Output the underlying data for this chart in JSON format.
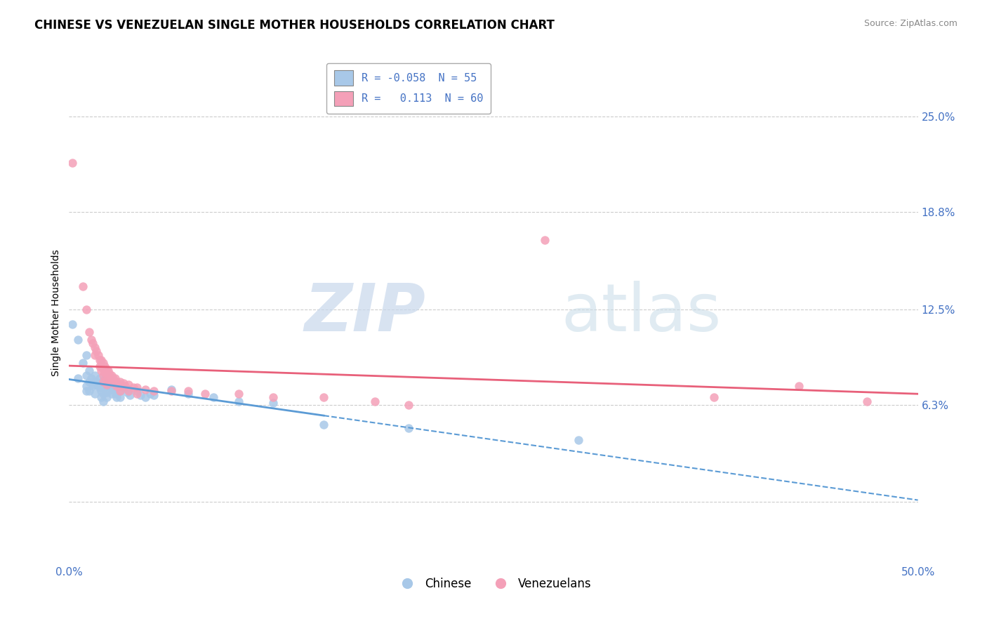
{
  "title": "CHINESE VS VENEZUELAN SINGLE MOTHER HOUSEHOLDS CORRELATION CHART",
  "source": "Source: ZipAtlas.com",
  "ylabel": "Single Mother Households",
  "background_color": "#ffffff",
  "grid_color": "#cccccc",
  "chinese_color": "#a8c8e8",
  "venezuelan_color": "#f4a0b8",
  "chinese_line_color": "#5b9bd5",
  "venezuelan_line_color": "#e8607a",
  "legend_R_chinese": "-0.058",
  "legend_N_chinese": "55",
  "legend_R_venezuelan": "0.113",
  "legend_N_venezuelan": "60",
  "xlim": [
    0.0,
    0.5
  ],
  "ylim": [
    -0.04,
    0.285
  ],
  "ytick_vals": [
    0.0,
    0.063,
    0.125,
    0.188,
    0.25
  ],
  "ytick_labels": [
    "",
    "6.3%",
    "12.5%",
    "18.8%",
    "25.0%"
  ],
  "xtick_vals": [
    0.0,
    0.25,
    0.5
  ],
  "xtick_labels": [
    "0.0%",
    "",
    "50.0%"
  ],
  "title_fontsize": 12,
  "source_fontsize": 9,
  "ylabel_fontsize": 10,
  "tick_fontsize": 11,
  "legend_fontsize": 11,
  "chinese_scatter": [
    [
      0.002,
      0.115
    ],
    [
      0.005,
      0.105
    ],
    [
      0.005,
      0.08
    ],
    [
      0.008,
      0.09
    ],
    [
      0.01,
      0.095
    ],
    [
      0.01,
      0.082
    ],
    [
      0.01,
      0.075
    ],
    [
      0.01,
      0.072
    ],
    [
      0.012,
      0.085
    ],
    [
      0.012,
      0.078
    ],
    [
      0.012,
      0.072
    ],
    [
      0.013,
      0.08
    ],
    [
      0.014,
      0.075
    ],
    [
      0.015,
      0.082
    ],
    [
      0.015,
      0.076
    ],
    [
      0.015,
      0.07
    ],
    [
      0.016,
      0.078
    ],
    [
      0.017,
      0.075
    ],
    [
      0.018,
      0.08
    ],
    [
      0.018,
      0.074
    ],
    [
      0.019,
      0.072
    ],
    [
      0.019,
      0.068
    ],
    [
      0.02,
      0.079
    ],
    [
      0.02,
      0.074
    ],
    [
      0.02,
      0.07
    ],
    [
      0.02,
      0.065
    ],
    [
      0.022,
      0.075
    ],
    [
      0.022,
      0.071
    ],
    [
      0.022,
      0.068
    ],
    [
      0.024,
      0.073
    ],
    [
      0.025,
      0.075
    ],
    [
      0.025,
      0.07
    ],
    [
      0.026,
      0.073
    ],
    [
      0.027,
      0.07
    ],
    [
      0.028,
      0.068
    ],
    [
      0.03,
      0.076
    ],
    [
      0.03,
      0.072
    ],
    [
      0.03,
      0.068
    ],
    [
      0.032,
      0.074
    ],
    [
      0.034,
      0.071
    ],
    [
      0.035,
      0.073
    ],
    [
      0.036,
      0.069
    ],
    [
      0.04,
      0.072
    ],
    [
      0.042,
      0.069
    ],
    [
      0.045,
      0.068
    ],
    [
      0.048,
      0.07
    ],
    [
      0.05,
      0.069
    ],
    [
      0.06,
      0.073
    ],
    [
      0.07,
      0.07
    ],
    [
      0.085,
      0.068
    ],
    [
      0.1,
      0.065
    ],
    [
      0.12,
      0.064
    ],
    [
      0.15,
      0.05
    ],
    [
      0.2,
      0.048
    ],
    [
      0.3,
      0.04
    ]
  ],
  "venezuelan_scatter": [
    [
      0.002,
      0.22
    ],
    [
      0.008,
      0.14
    ],
    [
      0.01,
      0.125
    ],
    [
      0.012,
      0.11
    ],
    [
      0.013,
      0.105
    ],
    [
      0.014,
      0.103
    ],
    [
      0.015,
      0.1
    ],
    [
      0.015,
      0.095
    ],
    [
      0.016,
      0.098
    ],
    [
      0.017,
      0.095
    ],
    [
      0.018,
      0.092
    ],
    [
      0.018,
      0.088
    ],
    [
      0.019,
      0.092
    ],
    [
      0.019,
      0.088
    ],
    [
      0.019,
      0.085
    ],
    [
      0.02,
      0.09
    ],
    [
      0.02,
      0.086
    ],
    [
      0.02,
      0.082
    ],
    [
      0.02,
      0.078
    ],
    [
      0.021,
      0.088
    ],
    [
      0.021,
      0.084
    ],
    [
      0.022,
      0.086
    ],
    [
      0.022,
      0.083
    ],
    [
      0.022,
      0.08
    ],
    [
      0.022,
      0.076
    ],
    [
      0.023,
      0.085
    ],
    [
      0.023,
      0.082
    ],
    [
      0.024,
      0.083
    ],
    [
      0.024,
      0.08
    ],
    [
      0.025,
      0.082
    ],
    [
      0.025,
      0.078
    ],
    [
      0.026,
      0.08
    ],
    [
      0.026,
      0.077
    ],
    [
      0.027,
      0.08
    ],
    [
      0.028,
      0.078
    ],
    [
      0.028,
      0.075
    ],
    [
      0.03,
      0.078
    ],
    [
      0.03,
      0.075
    ],
    [
      0.03,
      0.072
    ],
    [
      0.032,
      0.077
    ],
    [
      0.033,
      0.075
    ],
    [
      0.035,
      0.076
    ],
    [
      0.035,
      0.072
    ],
    [
      0.038,
      0.074
    ],
    [
      0.04,
      0.074
    ],
    [
      0.04,
      0.07
    ],
    [
      0.045,
      0.073
    ],
    [
      0.05,
      0.072
    ],
    [
      0.06,
      0.072
    ],
    [
      0.07,
      0.072
    ],
    [
      0.08,
      0.07
    ],
    [
      0.1,
      0.07
    ],
    [
      0.12,
      0.068
    ],
    [
      0.15,
      0.068
    ],
    [
      0.18,
      0.065
    ],
    [
      0.2,
      0.063
    ],
    [
      0.28,
      0.17
    ],
    [
      0.38,
      0.068
    ],
    [
      0.43,
      0.075
    ],
    [
      0.47,
      0.065
    ]
  ]
}
